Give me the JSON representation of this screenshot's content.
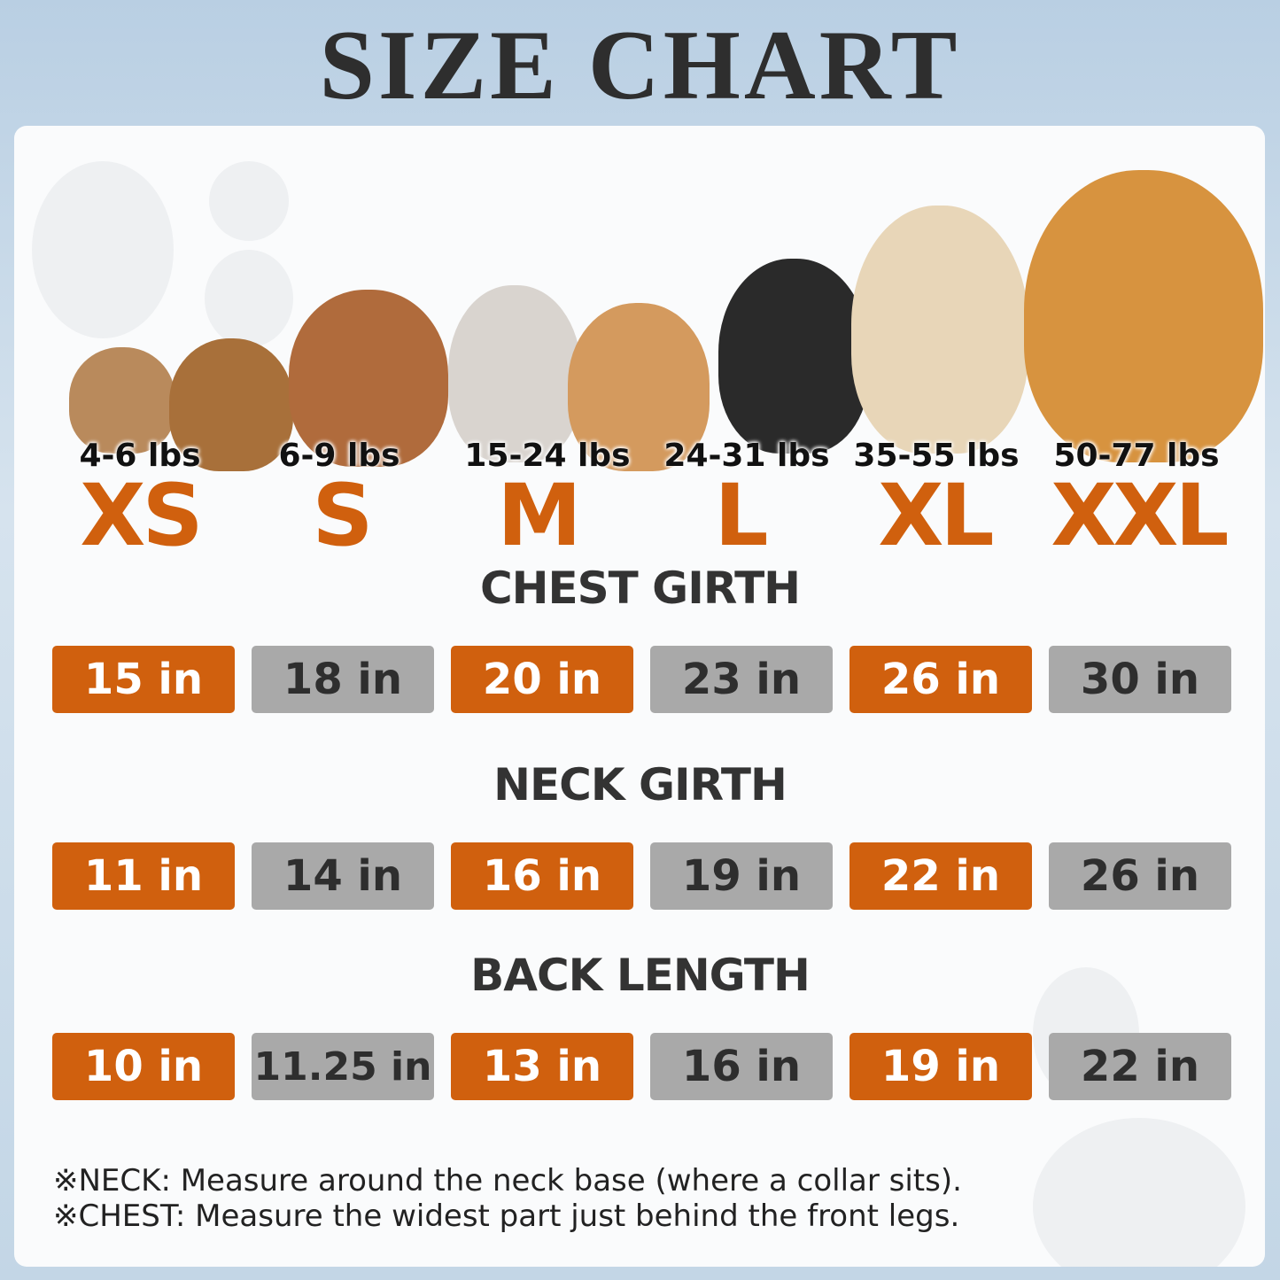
{
  "title": "SIZE CHART",
  "sizes": [
    {
      "label": "XS",
      "weight": "4-6 lbs"
    },
    {
      "label": "S",
      "weight": "6-9 lbs"
    },
    {
      "label": "M",
      "weight": "15-24 lbs"
    },
    {
      "label": "L",
      "weight": "24-31 lbs"
    },
    {
      "label": "XL",
      "weight": "35-55 lbs"
    },
    {
      "label": "XXL",
      "weight": "50-77 lbs"
    }
  ],
  "sections": [
    {
      "heading": "CHEST GIRTH",
      "values": [
        "15 in",
        "18 in",
        "20 in",
        "23 in",
        "26 in",
        "30 in"
      ]
    },
    {
      "heading": "NECK GIRTH",
      "values": [
        "11 in",
        "14 in",
        "16 in",
        "19 in",
        "22 in",
        "26 in"
      ]
    },
    {
      "heading": "BACK LENGTH",
      "values": [
        "10 in",
        "11.25 in",
        "13 in",
        "16 in",
        "19 in",
        "22 in"
      ]
    }
  ],
  "notes": [
    "※NECK: Measure around the neck base (where a collar sits).",
    "※CHEST: Measure the widest part just behind the front legs."
  ],
  "colors": {
    "accent": "#d0600e",
    "neutral": "#a9a9a9",
    "text": "#2e2e2e"
  }
}
